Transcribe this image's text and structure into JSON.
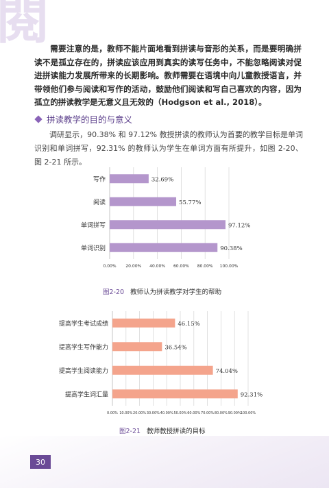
{
  "deco_char": "閱",
  "para1": "需要注意的是，教师不能片面地看到拼读与音形的关系，而是要明确拼读不是孤立存在的，拼读应该应用到真实的读写任务中，不能忽略阅读对促进拼读能力发展所带来的长期影响。教师需要在语境中向儿童教授语言，并带领他们参与阅读和写作的活动，鼓励他们阅读和写自己喜欢的内容，因为孤立的拼读教学是无意义且无效的（Hodgson et al., 2018）。",
  "section_title": "拼读教学的目的与意义",
  "para2": "调研显示，90.38% 和 97.12% 教授拼读的教师认为首要的教学目标是单词识别和单词拼写，92.31% 的教师认为学生在单词方面有所提升，如图 2-20、图 2-21 所示。",
  "fig1": {
    "number": "图2-20",
    "caption": "教师认为拼读教学对学生的帮助"
  },
  "fig2": {
    "number": "图2-21",
    "caption": "教师教授拼读的目标"
  },
  "page_number": "30",
  "chart_data": [
    {
      "type": "bar",
      "orientation": "horizontal",
      "categories": [
        "写作",
        "阅读",
        "单词拼写",
        "单词识别"
      ],
      "values": [
        32.69,
        55.77,
        97.12,
        90.38
      ],
      "value_labels": [
        "32.69%",
        "55.77%",
        "97.12%",
        "90.38%"
      ],
      "ticks": [
        "0.00%",
        "20.00%",
        "40.00%",
        "60.00%",
        "80.00%",
        "100.00%"
      ],
      "xlim": [
        0,
        100
      ],
      "grid": true,
      "color": "#b496cc"
    },
    {
      "type": "bar",
      "orientation": "horizontal",
      "categories": [
        "提高学生考试成绩",
        "提高学生写作能力",
        "提高学生阅读能力",
        "提高学生词汇量"
      ],
      "values": [
        46.15,
        36.54,
        74.04,
        92.31
      ],
      "value_labels": [
        "46.15%",
        "36.54%",
        "74.04%",
        "92.31%"
      ],
      "ticks": [
        "0.00%",
        "10.00%",
        "20.00%",
        "30.00%",
        "40.00%",
        "50.00%",
        "60.00%",
        "70.00%",
        "80.00%",
        "90.00%",
        "100.00%"
      ],
      "xlim": [
        0,
        100
      ],
      "grid": true,
      "color": "#f4a48c"
    }
  ]
}
